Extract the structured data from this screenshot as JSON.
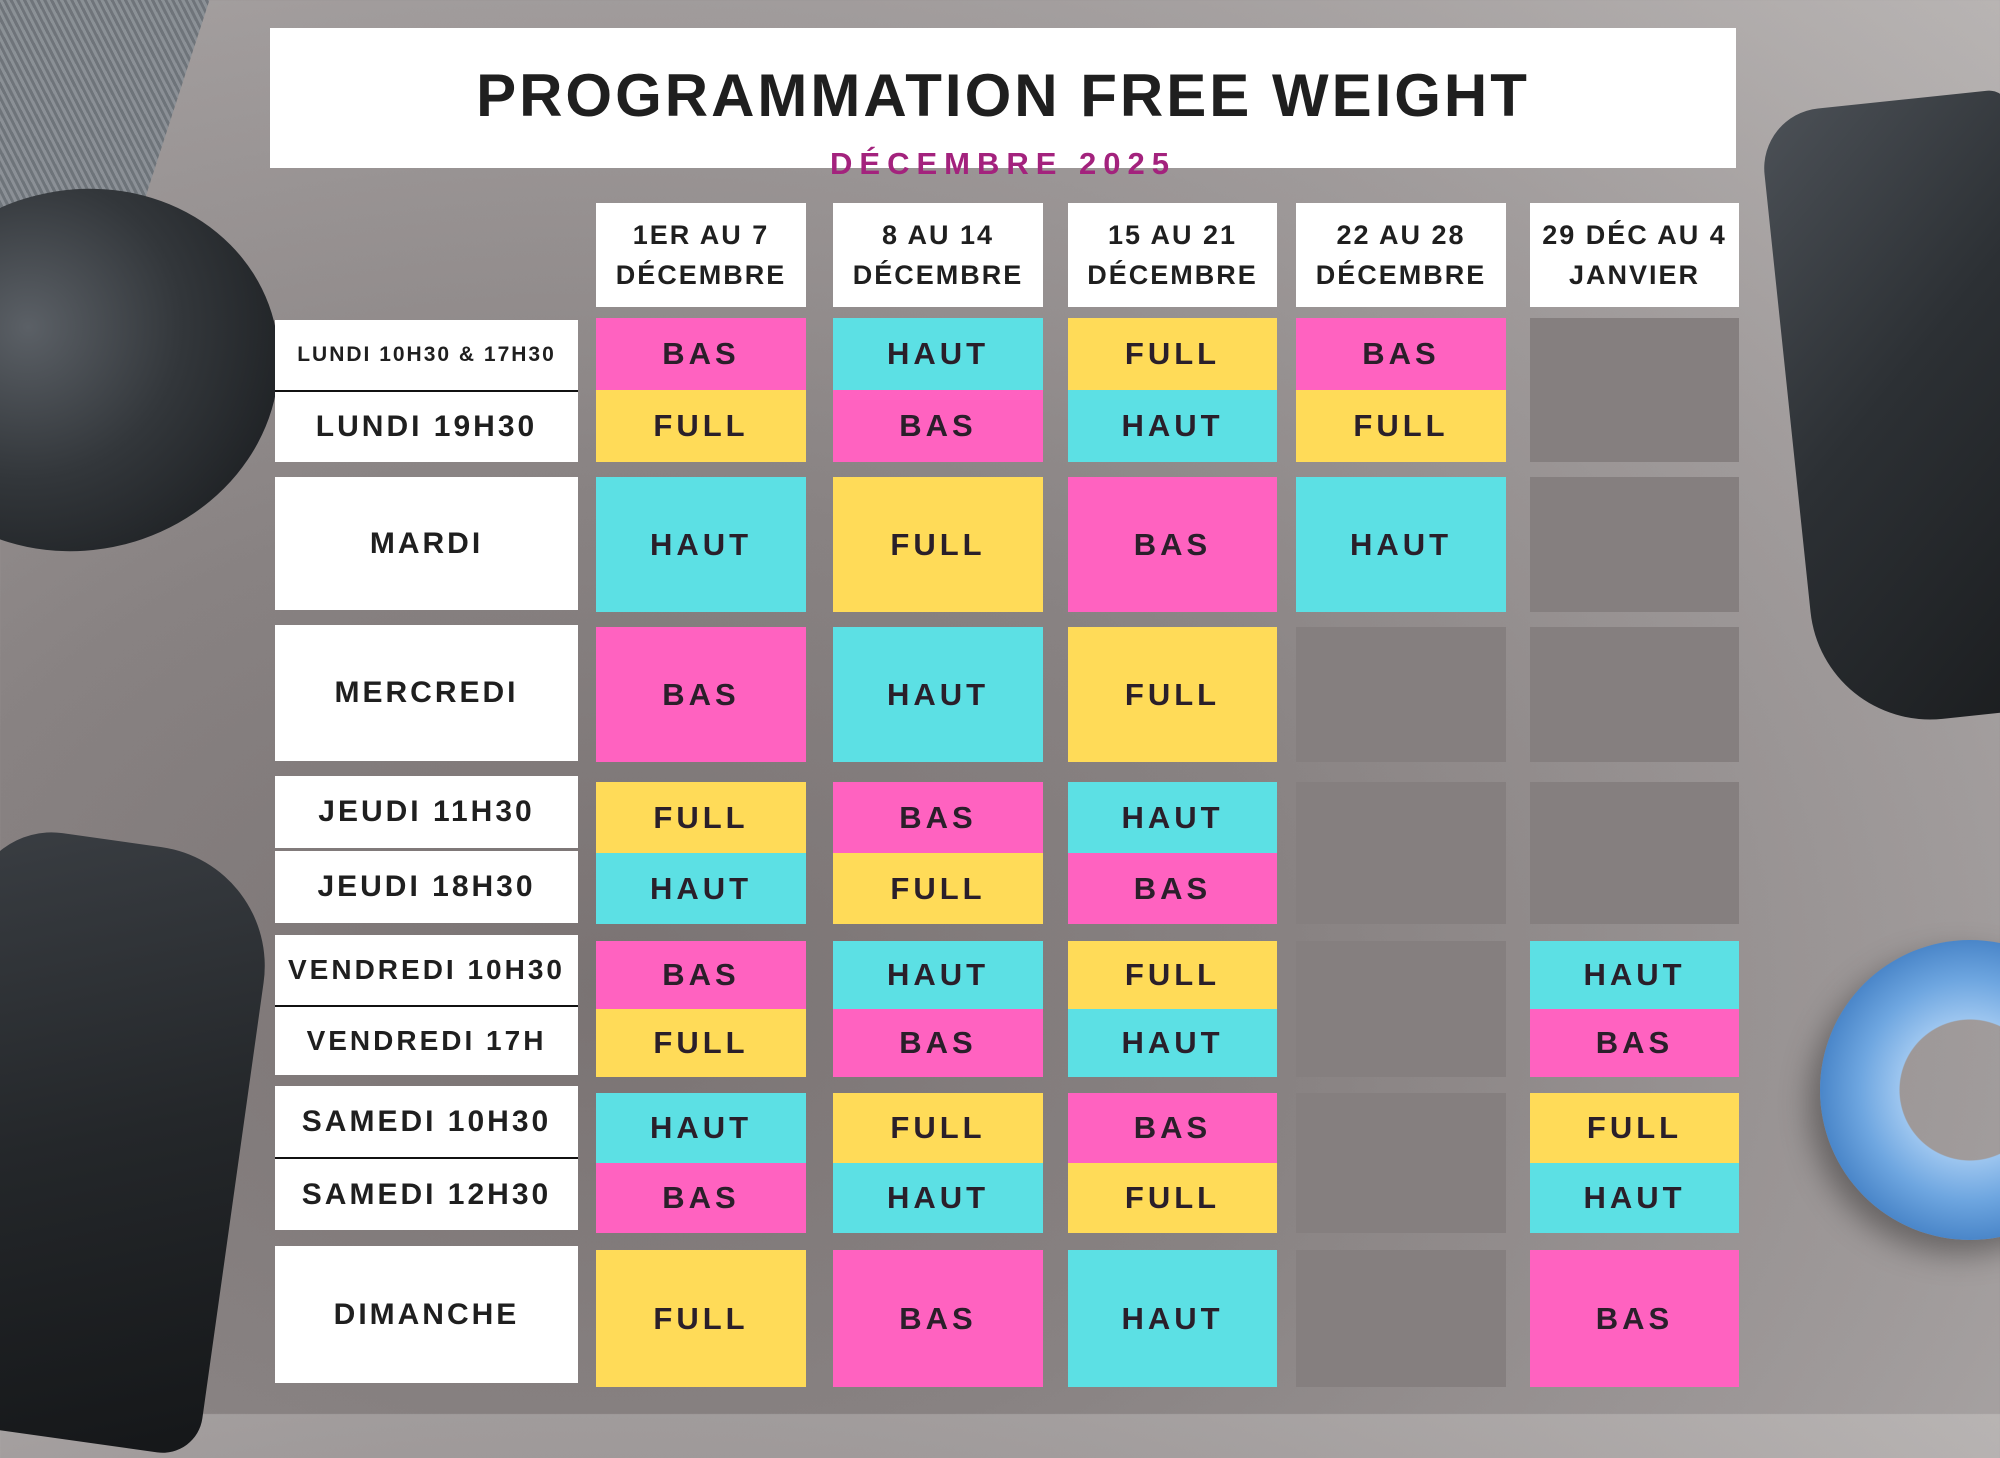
{
  "header": {
    "title": "PROGRAMMATION FREE WEIGHT",
    "subtitle": "DÉCEMBRE 2025"
  },
  "colors": {
    "BAS": "#ff62c0",
    "HAUT": "#5ce0e4",
    "FULL": "#ffdb58",
    "EMPTY": "#857f7f",
    "subtitle": "#a3227d"
  },
  "weeks": [
    {
      "label": "1ER AU 7\nDÉCEMBRE"
    },
    {
      "label": "8 AU 14\nDÉCEMBRE"
    },
    {
      "label": "15 AU 21\nDÉCEMBRE"
    },
    {
      "label": "22 AU 28\nDÉCEMBRE"
    },
    {
      "label": "29 DÉC AU 4\nJANVIER"
    }
  ],
  "slots": [
    {
      "label": "LUNDI 10H30 & 17H30",
      "values": [
        "BAS",
        "HAUT",
        "FULL",
        "BAS",
        ""
      ]
    },
    {
      "label": "LUNDI 19H30",
      "values": [
        "FULL",
        "BAS",
        "HAUT",
        "FULL",
        ""
      ]
    },
    {
      "label": "MARDI",
      "values": [
        "HAUT",
        "FULL",
        "BAS",
        "HAUT",
        ""
      ]
    },
    {
      "label": "MERCREDI",
      "values": [
        "BAS",
        "HAUT",
        "FULL",
        "",
        ""
      ]
    },
    {
      "label": "JEUDI 11H30",
      "values": [
        "FULL",
        "BAS",
        "HAUT",
        "",
        ""
      ]
    },
    {
      "label": "JEUDI 18H30",
      "values": [
        "HAUT",
        "FULL",
        "BAS",
        "",
        ""
      ]
    },
    {
      "label": "VENDREDI 10H30",
      "values": [
        "BAS",
        "HAUT",
        "FULL",
        "",
        "HAUT"
      ]
    },
    {
      "label": "VENDREDI 17H",
      "values": [
        "FULL",
        "BAS",
        "HAUT",
        "",
        "BAS"
      ]
    },
    {
      "label": "SAMEDI 10H30",
      "values": [
        "HAUT",
        "FULL",
        "BAS",
        "",
        "FULL"
      ]
    },
    {
      "label": "SAMEDI 12H30",
      "values": [
        "BAS",
        "HAUT",
        "FULL",
        "",
        "HAUT"
      ]
    },
    {
      "label": "DIMANCHE",
      "values": [
        "FULL",
        "BAS",
        "HAUT",
        "",
        "BAS"
      ]
    }
  ]
}
